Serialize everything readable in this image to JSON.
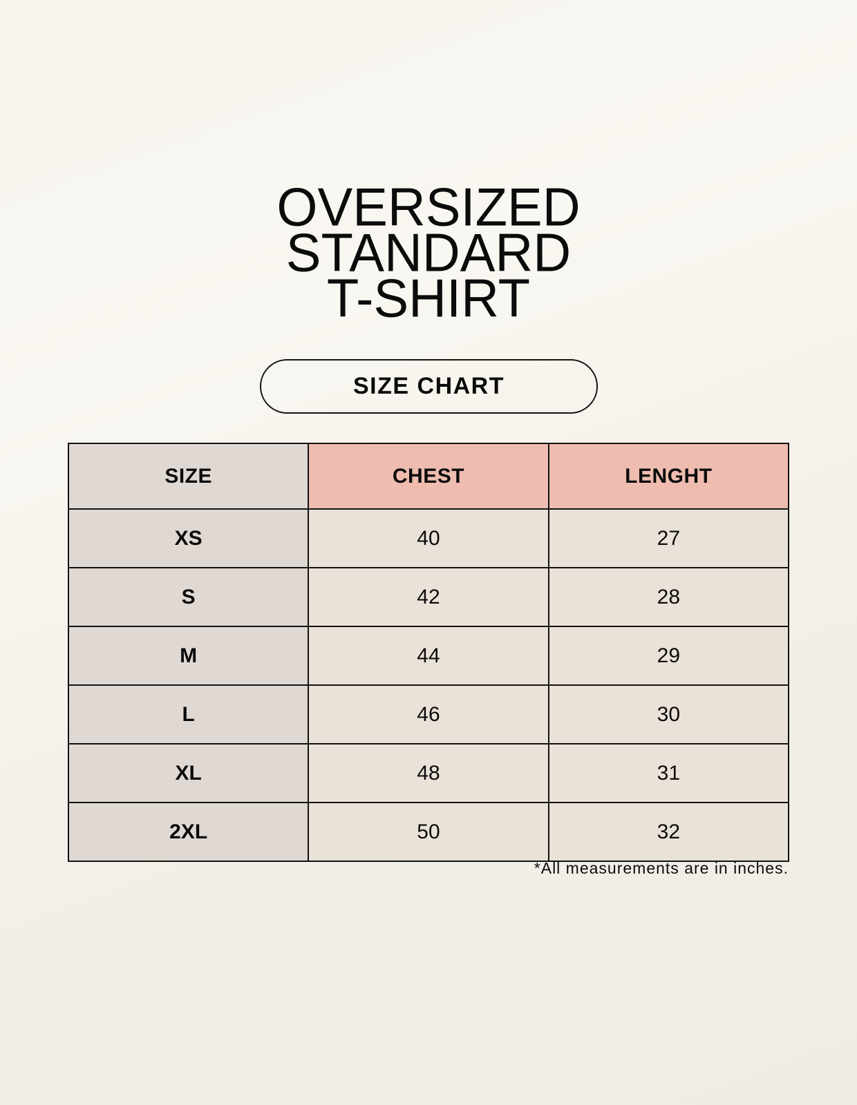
{
  "title_lines": [
    "OVERSIZED",
    "STANDARD",
    "T-SHIRT"
  ],
  "subtitle": "SIZE CHART",
  "table": {
    "headers": [
      "SIZE",
      "CHEST",
      "LENGHT"
    ],
    "rows": [
      [
        "XS",
        "40",
        "27"
      ],
      [
        "S",
        "42",
        "28"
      ],
      [
        "M",
        "44",
        "29"
      ],
      [
        "L",
        "46",
        "30"
      ],
      [
        "XL",
        "48",
        "31"
      ],
      [
        "2XL",
        "50",
        "32"
      ]
    ]
  },
  "footnote": "*All measurements are in inches.",
  "colors": {
    "size_column": "#e0d8d2",
    "header_accent": "#eebdb0",
    "body_cell": "#eae2d8"
  }
}
